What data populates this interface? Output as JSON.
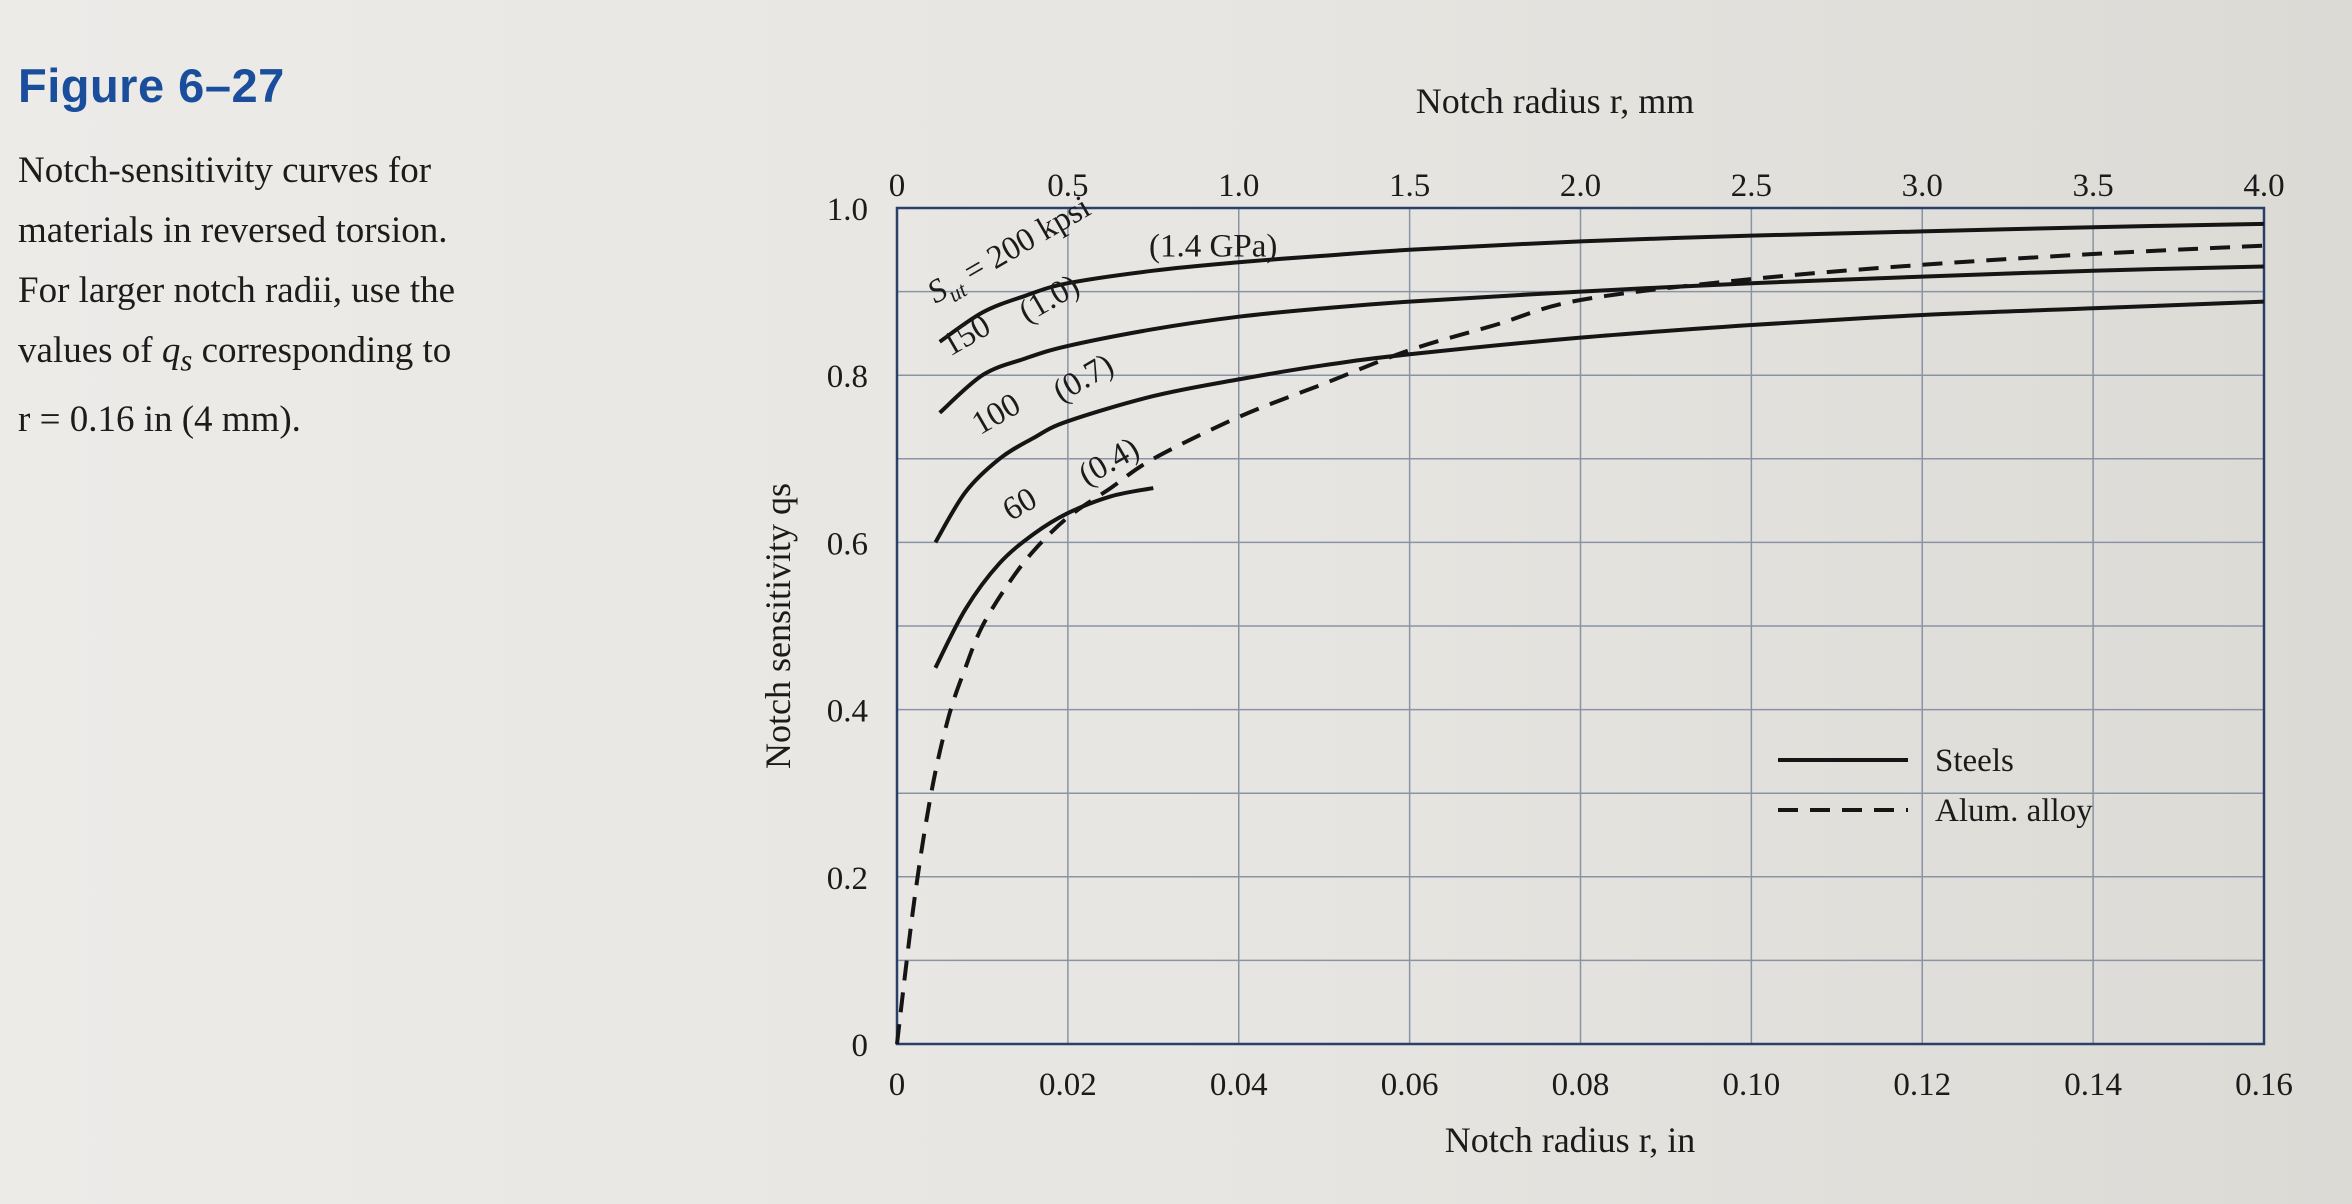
{
  "caption": {
    "figure_label": "Figure 6–27",
    "line1": "Notch-sensitivity curves for",
    "line2": "materials in reversed torsion.",
    "line3": "For larger notch radii, use the",
    "line4_pre": "values of ",
    "line4_sym": "q",
    "line4_sub": "s",
    "line4_post": " corresponding to",
    "line5": "r = 0.16 in (4 mm)."
  },
  "chart_data": {
    "type": "line",
    "xlabel": "Notch radius r, in",
    "x2label": "Notch radius r, mm",
    "ylabel": "Notch sensitivity qs",
    "xlim": [
      0,
      0.16
    ],
    "ylim": [
      0,
      1.0
    ],
    "x2lim": [
      0,
      4.0
    ],
    "xticks": [
      "0",
      "0.02",
      "0.04",
      "0.06",
      "0.08",
      "0.10",
      "0.12",
      "0.14",
      "0.16"
    ],
    "x2ticks": [
      "0",
      "0.5",
      "1.0",
      "1.5",
      "2.0",
      "2.5",
      "3.0",
      "3.5",
      "4.0"
    ],
    "yticks": [
      "0",
      "0.2",
      "0.4",
      "0.6",
      "0.8",
      "1.0"
    ],
    "grid": true,
    "legend_position": "lower-right",
    "legend": [
      {
        "label": "Steels",
        "style": "solid"
      },
      {
        "label": "Alum. alloy",
        "style": "dashed"
      }
    ],
    "series": [
      {
        "name": "Steels Sut = 200 kpsi (1.4 GPa)",
        "style": "solid",
        "label_parts": [
          "S",
          "ut",
          " = 200 kpsi",
          "(1.4 GPa)"
        ],
        "x": [
          0.005,
          0.01,
          0.015,
          0.02,
          0.03,
          0.04,
          0.05,
          0.06,
          0.08,
          0.1,
          0.12,
          0.14,
          0.16
        ],
        "y": [
          0.84,
          0.875,
          0.895,
          0.91,
          0.925,
          0.935,
          0.943,
          0.95,
          0.96,
          0.967,
          0.972,
          0.977,
          0.981
        ]
      },
      {
        "name": "Steels 150 (1.0)",
        "style": "solid",
        "label_parts": [
          "150",
          "(1.0)"
        ],
        "x": [
          0.005,
          0.01,
          0.015,
          0.02,
          0.03,
          0.04,
          0.05,
          0.06,
          0.08,
          0.1,
          0.12,
          0.14,
          0.16
        ],
        "y": [
          0.755,
          0.8,
          0.82,
          0.835,
          0.855,
          0.87,
          0.88,
          0.888,
          0.9,
          0.91,
          0.918,
          0.925,
          0.93
        ]
      },
      {
        "name": "Steels 100 (0.7)",
        "style": "solid",
        "label_parts": [
          "100",
          "(0.7)"
        ],
        "x": [
          0.0045,
          0.008,
          0.012,
          0.016,
          0.02,
          0.03,
          0.04,
          0.05,
          0.06,
          0.08,
          0.1,
          0.12,
          0.14,
          0.16
        ],
        "y": [
          0.6,
          0.66,
          0.7,
          0.725,
          0.745,
          0.775,
          0.795,
          0.812,
          0.825,
          0.845,
          0.86,
          0.872,
          0.88,
          0.888
        ]
      },
      {
        "name": "Steels 60 (0.4)",
        "style": "solid",
        "label_parts": [
          "60",
          "(0.4)"
        ],
        "x": [
          0.0045,
          0.008,
          0.012,
          0.016,
          0.02,
          0.025,
          0.03
        ],
        "y": [
          0.45,
          0.52,
          0.575,
          0.61,
          0.635,
          0.655,
          0.665
        ]
      },
      {
        "name": "Alum. alloy",
        "style": "dashed",
        "label_parts": [],
        "x": [
          0.0,
          0.002,
          0.004,
          0.006,
          0.008,
          0.01,
          0.013,
          0.016,
          0.02,
          0.025,
          0.03,
          0.04,
          0.05,
          0.06,
          0.07,
          0.08,
          0.1,
          0.12,
          0.14,
          0.16
        ],
        "y": [
          0.0,
          0.17,
          0.3,
          0.39,
          0.45,
          0.5,
          0.55,
          0.59,
          0.63,
          0.665,
          0.7,
          0.75,
          0.79,
          0.83,
          0.86,
          0.89,
          0.915,
          0.932,
          0.945,
          0.955
        ]
      }
    ]
  }
}
